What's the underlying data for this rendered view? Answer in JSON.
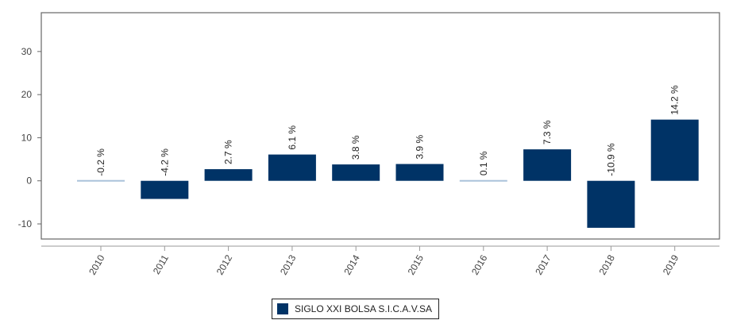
{
  "colors": {
    "bar": "#003366",
    "bar_light": "#a9c2da",
    "axis": "#666666"
  },
  "legend": {
    "label": "SIGLO XXI BOLSA S.I.C.A.V.SA"
  },
  "chart_data": {
    "type": "bar",
    "categories": [
      "2010",
      "2011",
      "2012",
      "2013",
      "2014",
      "2015",
      "2016",
      "2017",
      "2018",
      "2019"
    ],
    "series": [
      {
        "name": "SIGLO XXI BOLSA S.I.C.A.V.SA",
        "values": [
          -0.2,
          -4.2,
          2.7,
          6.1,
          3.8,
          3.9,
          0.1,
          7.3,
          -10.9,
          14.2
        ]
      }
    ],
    "data_labels": [
      "-0.2 %",
      "-4.2 %",
      "2.7 %",
      "6.1 %",
      "3.8 %",
      "3.9 %",
      "0.1 %",
      "7.3 %",
      "-10.9 %",
      "14.2 %"
    ],
    "yticks": [
      -10,
      0,
      10,
      20,
      30
    ],
    "ylim": [
      -13.5,
      39
    ],
    "grid": false,
    "legend_position": "bottom"
  }
}
